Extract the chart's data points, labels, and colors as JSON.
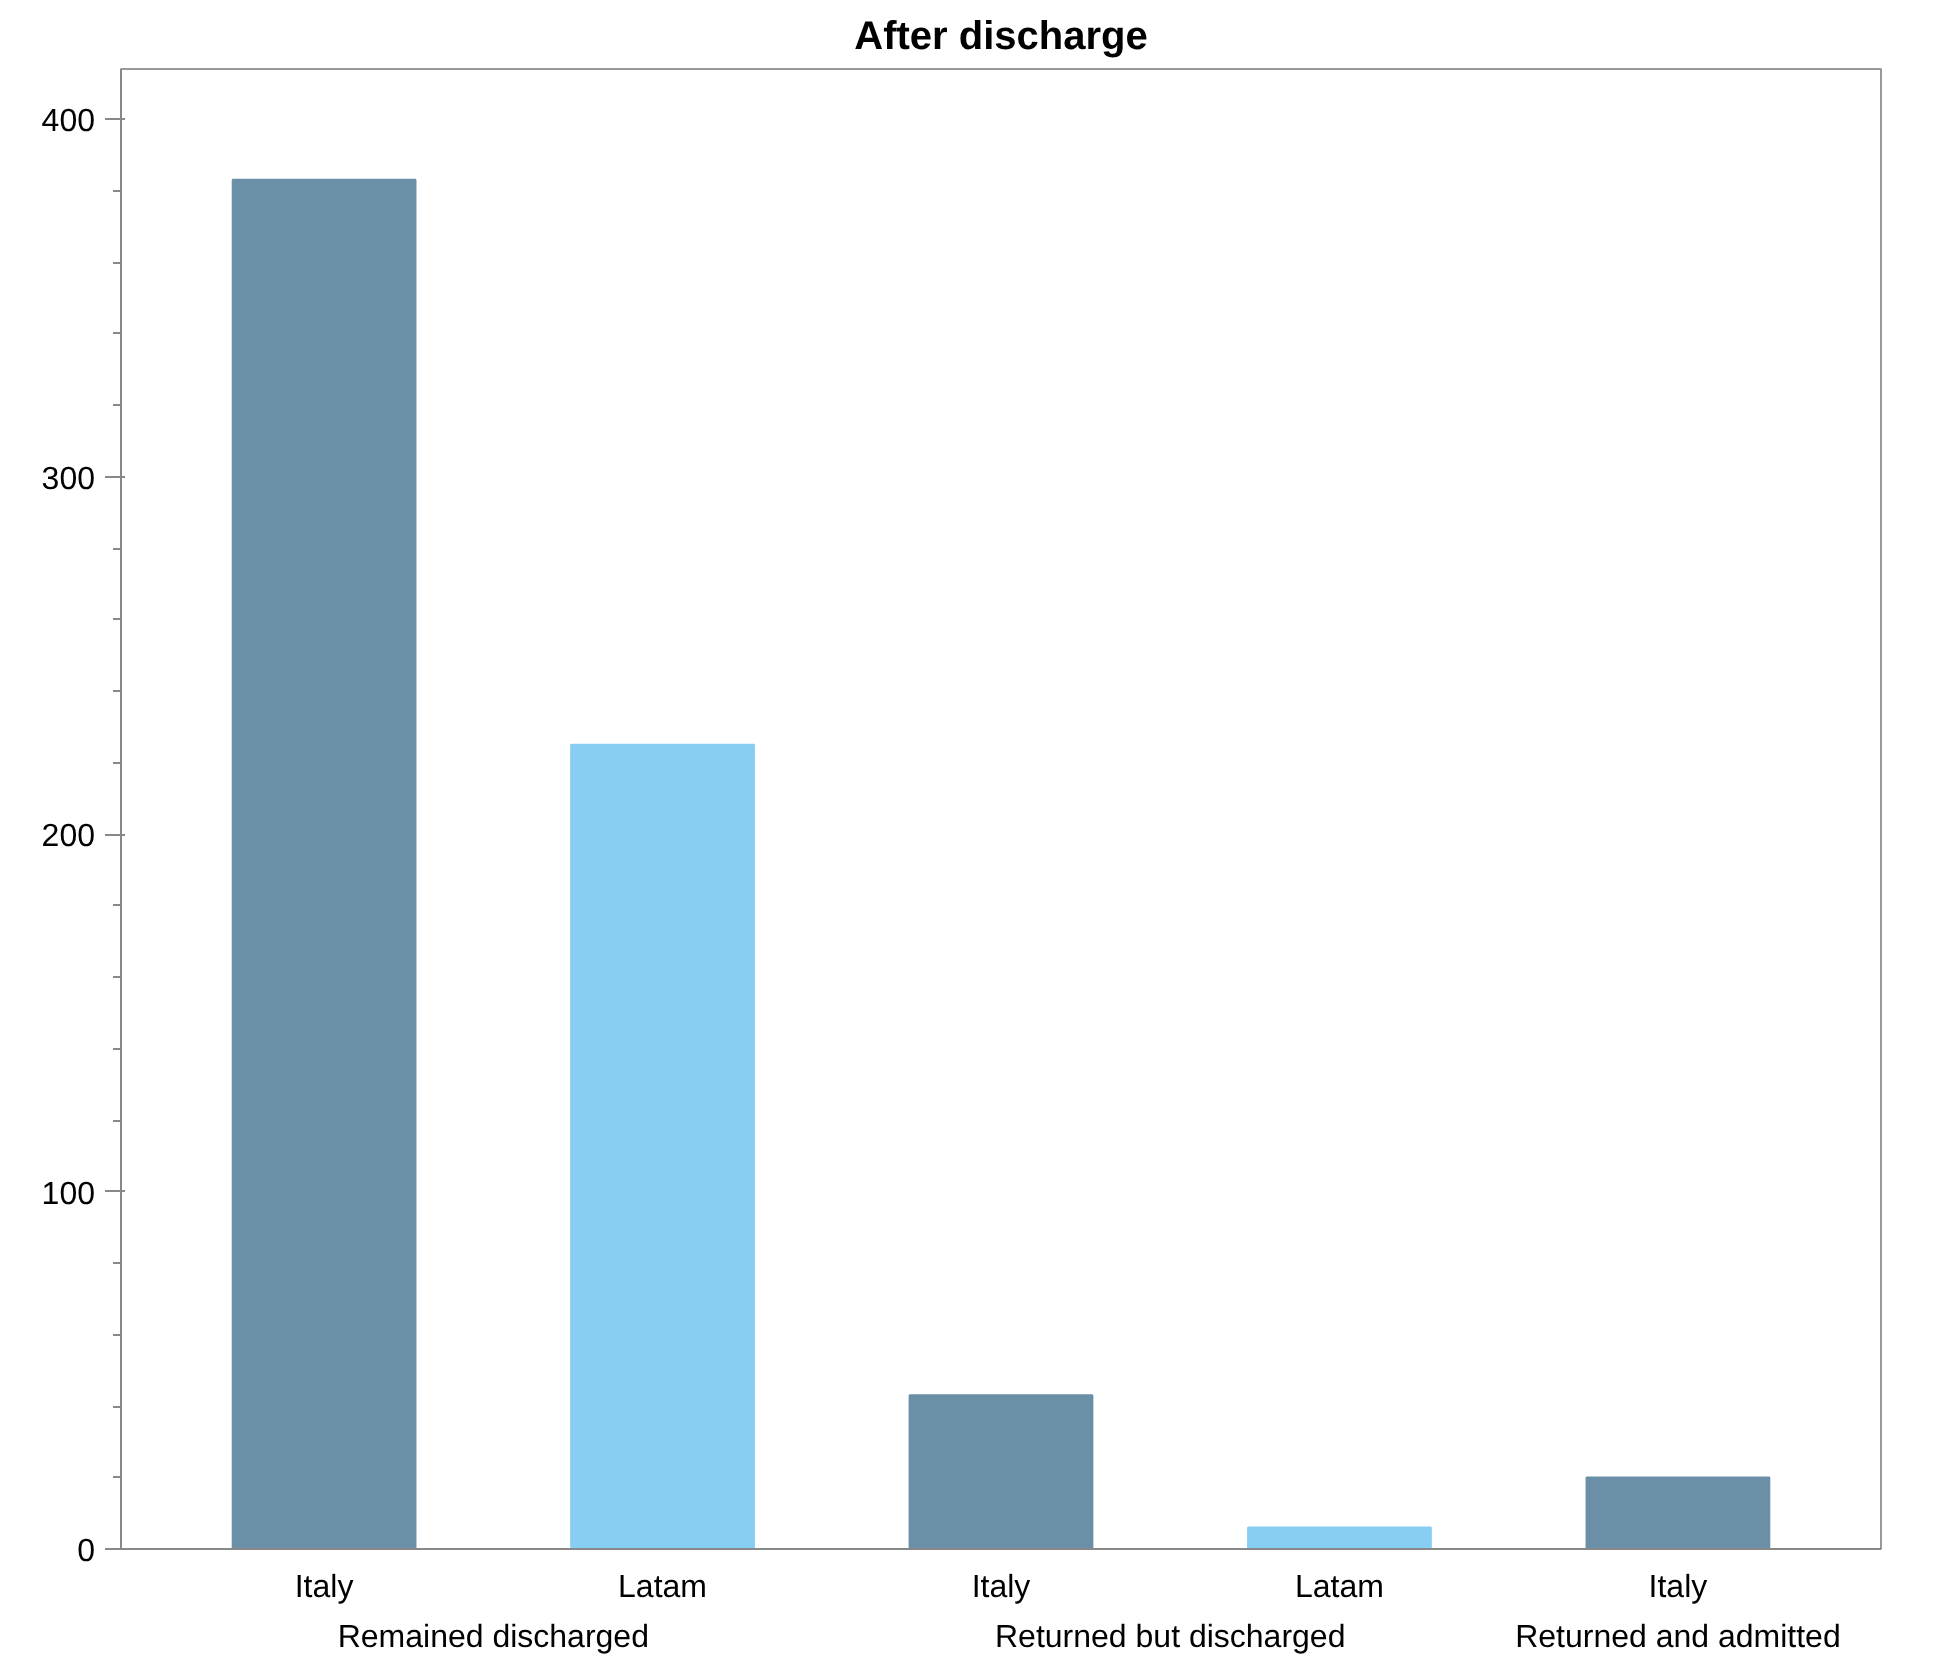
{
  "chart_data": {
    "type": "bar",
    "title": "After discharge",
    "categories": [
      "Remained discharged",
      "Returned but discharged",
      "Returned and admitted"
    ],
    "series": [
      {
        "name": "Italy",
        "color": "#6a8fa6",
        "values": [
          383,
          43,
          20
        ]
      },
      {
        "name": "Latam",
        "color": "#88cdf2",
        "values": [
          225,
          6,
          null
        ]
      }
    ],
    "ylim": [
      0,
      414
    ],
    "yticks": [
      0,
      {
        "value": 20,
        "label": null
      },
      {
        "value": 40,
        "label": null
      },
      {
        "value": 60,
        "label": null
      },
      {
        "value": 80,
        "label": null
      },
      100,
      {
        "value": 120,
        "label": null
      },
      {
        "value": 140,
        "label": null
      },
      {
        "value": 160,
        "label": null
      },
      {
        "value": 180,
        "label": null
      },
      200,
      {
        "value": 220,
        "label": null
      },
      {
        "value": 240,
        "label": null
      },
      {
        "value": 260,
        "label": null
      },
      {
        "value": 280,
        "label": null
      },
      300,
      {
        "value": 320,
        "label": null
      },
      {
        "value": 340,
        "label": null
      },
      {
        "value": 360,
        "label": null
      },
      {
        "value": 380,
        "label": null
      },
      400
    ],
    "grid": false
  }
}
